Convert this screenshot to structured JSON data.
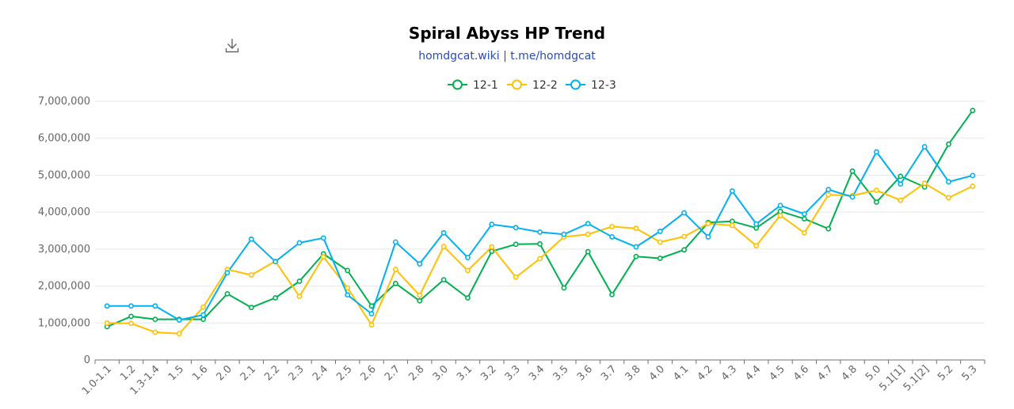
{
  "header": {
    "title": "Spiral Abyss HP Trend",
    "subtitle": "homdgcat.wiki | t.me/homdgcat",
    "download_icon": "download-icon"
  },
  "chart_data": {
    "type": "line",
    "title": "Spiral Abyss HP Trend",
    "subtitle": "homdgcat.wiki | t.me/homdgcat",
    "xlabel": "",
    "ylabel": "",
    "ylim": [
      0,
      7000000
    ],
    "yticks": [
      "0",
      "1,000,000",
      "2,000,000",
      "3,000,000",
      "4,000,000",
      "5,000,000",
      "6,000,000",
      "7,000,000"
    ],
    "yticks_values": [
      0,
      1000000,
      2000000,
      3000000,
      4000000,
      5000000,
      6000000,
      7000000
    ],
    "grid": true,
    "legend_position": "top-center",
    "categories": [
      "1.0-1.1",
      "1.2",
      "1.3-1.4",
      "1.5",
      "1.6",
      "2.0",
      "2.1",
      "2.2",
      "2.3",
      "2.4",
      "2.5",
      "2.6",
      "2.7",
      "2.8",
      "3.0",
      "3.1",
      "3.2",
      "3.3",
      "3.4",
      "3.5",
      "3.6",
      "3.7",
      "3.8",
      "4.0",
      "4.1",
      "4.2",
      "4.3",
      "4.4",
      "4.5",
      "4.6",
      "4.7",
      "4.8",
      "5.0",
      "5.1[1]",
      "5.1[2]",
      "5.2",
      "5.3"
    ],
    "series": [
      {
        "name": "12-1",
        "color": "#00b050",
        "values": [
          900000,
          1180000,
          1100000,
          1100000,
          1100000,
          1790000,
          1420000,
          1680000,
          2130000,
          2870000,
          2420000,
          1460000,
          2070000,
          1600000,
          2170000,
          1680000,
          2940000,
          3130000,
          3140000,
          1950000,
          2930000,
          1770000,
          2800000,
          2750000,
          2980000,
          3720000,
          3750000,
          3570000,
          4020000,
          3820000,
          3550000,
          5110000,
          4270000,
          4970000,
          4680000,
          5840000,
          6750000
        ]
      },
      {
        "name": "12-2",
        "color": "#ffc000",
        "values": [
          1000000,
          990000,
          750000,
          710000,
          1430000,
          2450000,
          2300000,
          2670000,
          1720000,
          2790000,
          1950000,
          950000,
          2450000,
          1750000,
          3070000,
          2420000,
          3060000,
          2240000,
          2740000,
          3330000,
          3400000,
          3610000,
          3560000,
          3190000,
          3340000,
          3690000,
          3640000,
          3090000,
          3910000,
          3440000,
          4470000,
          4450000,
          4590000,
          4320000,
          4780000,
          4390000,
          4700000
        ]
      },
      {
        "name": "12-3",
        "color": "#00b0f0",
        "values": [
          1460000,
          1460000,
          1460000,
          1080000,
          1220000,
          2360000,
          3270000,
          2660000,
          3170000,
          3300000,
          1760000,
          1250000,
          3190000,
          2600000,
          3440000,
          2770000,
          3670000,
          3580000,
          3460000,
          3400000,
          3690000,
          3330000,
          3060000,
          3480000,
          3980000,
          3330000,
          4570000,
          3680000,
          4180000,
          3950000,
          4610000,
          4410000,
          5630000,
          4760000,
          5770000,
          4820000,
          4990000
        ]
      }
    ]
  }
}
